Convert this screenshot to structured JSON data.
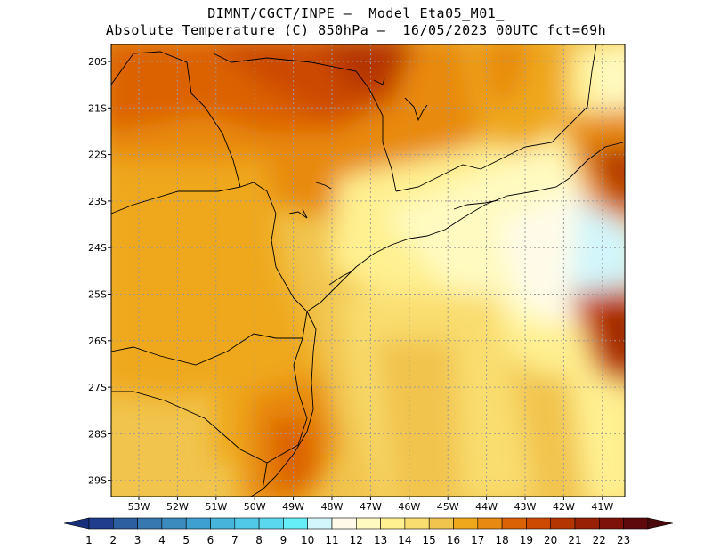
{
  "header": {
    "line1": "DIMNT/CGCT/INPE –  Model Eta05_M01_",
    "line2": "Absolute Temperature (C) 850hPa –  16/05/2023 00UTC fct=69h"
  },
  "map": {
    "lat_labels": [
      "20S",
      "21S",
      "22S",
      "23S",
      "24S",
      "25S",
      "26S",
      "27S",
      "28S",
      "29S"
    ],
    "lon_labels": [
      "53W",
      "52W",
      "51W",
      "50W",
      "49W",
      "48W",
      "47W",
      "46W",
      "45W",
      "44W",
      "43W",
      "42W",
      "41W"
    ]
  },
  "colorbar": {
    "labels": [
      "1",
      "2",
      "3",
      "4",
      "5",
      "6",
      "7",
      "8",
      "9",
      "10",
      "11",
      "12",
      "13",
      "14",
      "15",
      "16",
      "17",
      "18",
      "19",
      "20",
      "21",
      "22",
      "23"
    ],
    "colors": [
      "#1f3d8c",
      "#2c5fa0",
      "#3878b0",
      "#3c8bbf",
      "#3ea0cf",
      "#45b5dc",
      "#50c8e8",
      "#5ad8f0",
      "#66eef8",
      "#d2f6fb",
      "#fffbe8",
      "#fffac0",
      "#fff090",
      "#f9dd6e",
      "#f1c44d",
      "#efa81b",
      "#e88a10",
      "#dc6206",
      "#cc4a02",
      "#b43402",
      "#9a2005",
      "#7e1208",
      "#5e0a0c"
    ],
    "left_cap": "#18307c",
    "right_cap": "#4a0a0c"
  }
}
